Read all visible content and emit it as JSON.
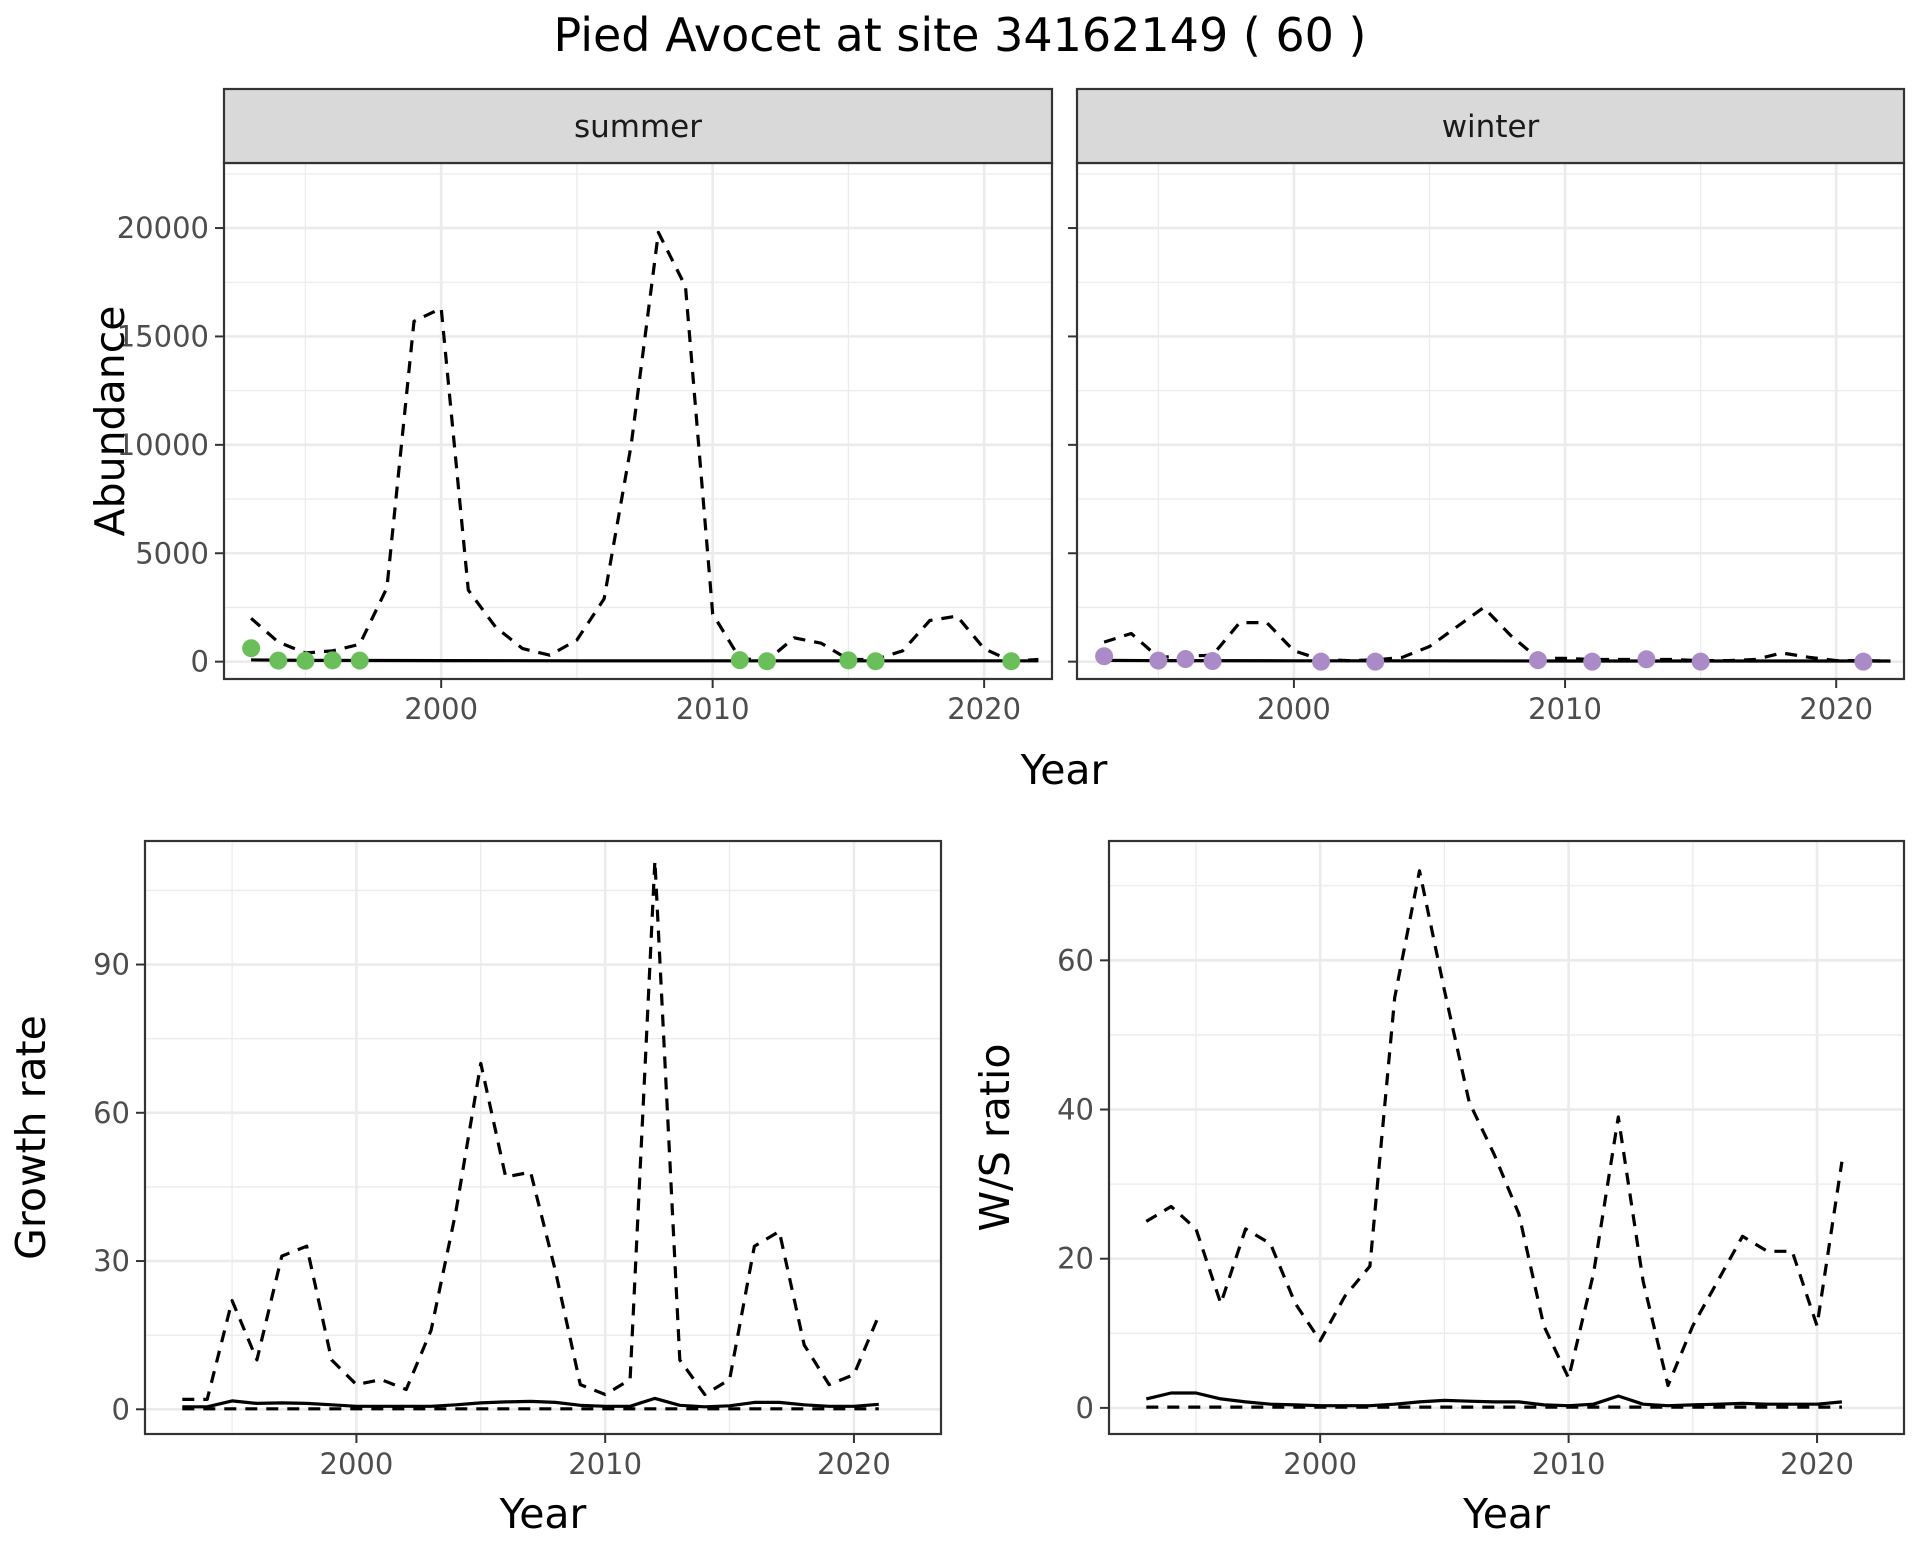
{
  "title": "Pied Avocet at site 34162149 ( 60 )",
  "chart_data": [
    {
      "type": "line",
      "facet": "summer",
      "xlabel": "Year",
      "ylabel": "Abundance",
      "xlim": [
        1992,
        2022.5
      ],
      "ylim": [
        -800,
        23000
      ],
      "xticks": [
        2000,
        2010,
        2020
      ],
      "yticks": [
        0,
        5000,
        10000,
        15000,
        20000
      ],
      "color": "#6abf5a",
      "series": [
        {
          "style": "dashed",
          "x": [
            1993,
            1994,
            1995,
            1996,
            1997,
            1998,
            1999,
            2000,
            2001,
            2002,
            2003,
            2004,
            2005,
            2006,
            2007,
            2008,
            2009,
            2010,
            2011,
            2012,
            2013,
            2014,
            2015,
            2016,
            2017,
            2018,
            2019,
            2020,
            2021,
            2022
          ],
          "values": [
            2000,
            900,
            400,
            500,
            800,
            3400,
            15700,
            16300,
            3300,
            1600,
            600,
            300,
            1000,
            2900,
            10000,
            19800,
            17300,
            2200,
            150,
            50,
            1100,
            850,
            100,
            100,
            500,
            1900,
            2100,
            600,
            20,
            100
          ]
        },
        {
          "style": "solid",
          "x": [
            1993,
            1995,
            2000,
            2005,
            2010,
            2015,
            2020,
            2022
          ],
          "values": [
            80,
            60,
            50,
            40,
            40,
            40,
            40,
            40
          ]
        }
      ],
      "points": {
        "x": [
          1993,
          1994,
          1995,
          1996,
          1997,
          2011,
          2012,
          2015,
          2016,
          2021
        ],
        "values": [
          620,
          50,
          40,
          60,
          50,
          70,
          20,
          60,
          20,
          20
        ]
      }
    },
    {
      "type": "line",
      "facet": "winter",
      "xlabel": "Year",
      "ylabel": "Abundance",
      "xlim": [
        1992,
        2022.5
      ],
      "ylim": [
        -800,
        23000
      ],
      "xticks": [
        2000,
        2010,
        2020
      ],
      "yticks": [
        0,
        5000,
        10000,
        15000,
        20000
      ],
      "color": "#ab8bc7",
      "series": [
        {
          "style": "dashed",
          "x": [
            1993,
            1994,
            1995,
            1996,
            1997,
            1998,
            1999,
            2000,
            2001,
            2002,
            2003,
            2004,
            2005,
            2006,
            2007,
            2008,
            2009,
            2010,
            2011,
            2012,
            2013,
            2014,
            2015,
            2016,
            2017,
            2018,
            2019,
            2020,
            2021,
            2022
          ],
          "values": [
            900,
            1300,
            200,
            250,
            300,
            1800,
            1800,
            500,
            100,
            50,
            80,
            200,
            700,
            1600,
            2500,
            1200,
            150,
            150,
            100,
            100,
            100,
            100,
            50,
            50,
            100,
            400,
            200,
            50,
            50,
            20
          ]
        },
        {
          "style": "solid",
          "x": [
            1993,
            1995,
            2000,
            2005,
            2010,
            2015,
            2020,
            2022
          ],
          "values": [
            60,
            50,
            40,
            40,
            30,
            30,
            30,
            30
          ]
        }
      ],
      "points": {
        "x": [
          1993,
          1995,
          1996,
          1997,
          2001,
          2003,
          2009,
          2011,
          2013,
          2015,
          2021
        ],
        "values": [
          250,
          50,
          120,
          30,
          0,
          0,
          70,
          0,
          110,
          0,
          0
        ]
      }
    },
    {
      "type": "line",
      "xlabel": "Year",
      "ylabel": "Growth rate",
      "xlim": [
        1991.5,
        2023.5
      ],
      "ylim": [
        -5,
        115
      ],
      "xticks": [
        2000,
        2010,
        2020
      ],
      "yticks": [
        0,
        30,
        60,
        90
      ],
      "series": [
        {
          "style": "dashed",
          "x": [
            1993,
            1994,
            1995,
            1996,
            1997,
            1998,
            1999,
            2000,
            2001,
            2002,
            2003,
            2004,
            2005,
            2006,
            2007,
            2008,
            2009,
            2010,
            2011,
            2012,
            2013,
            2014,
            2015,
            2016,
            2017,
            2018,
            2019,
            2020,
            2021
          ],
          "values": [
            2,
            2,
            22,
            10,
            31,
            33,
            10,
            5,
            6,
            4,
            16,
            40,
            70,
            47,
            48,
            28,
            5,
            3,
            6,
            111,
            10,
            3,
            6,
            33,
            36,
            13,
            5,
            7,
            19
          ]
        },
        {
          "style": "solid",
          "x": [
            1993,
            1994,
            1995,
            1996,
            1997,
            1998,
            1999,
            2000,
            2001,
            2002,
            2003,
            2004,
            2005,
            2006,
            2007,
            2008,
            2009,
            2010,
            2011,
            2012,
            2013,
            2014,
            2015,
            2016,
            2017,
            2018,
            2019,
            2020,
            2021
          ],
          "values": [
            0.5,
            0.5,
            1.7,
            1.2,
            1.3,
            1.2,
            0.9,
            0.6,
            0.6,
            0.6,
            0.6,
            0.9,
            1.3,
            1.5,
            1.6,
            1.4,
            0.8,
            0.6,
            0.6,
            2.2,
            0.8,
            0.5,
            0.7,
            1.4,
            1.4,
            0.9,
            0.6,
            0.6,
            1.0
          ]
        },
        {
          "style": "dashed",
          "x": [
            1993,
            2021
          ],
          "values": [
            0.1,
            0.1
          ]
        }
      ]
    },
    {
      "type": "line",
      "xlabel": "Year",
      "ylabel": "W/S ratio",
      "xlim": [
        1991.5,
        2023.5
      ],
      "ylim": [
        -3.5,
        76
      ],
      "xticks": [
        2000,
        2010,
        2020
      ],
      "yticks": [
        0,
        20,
        40,
        60
      ],
      "series": [
        {
          "style": "dashed",
          "x": [
            1993,
            1994,
            1995,
            1996,
            1997,
            1998,
            1999,
            2000,
            2001,
            2002,
            2003,
            2004,
            2005,
            2006,
            2007,
            2008,
            2009,
            2010,
            2011,
            2012,
            2013,
            2014,
            2015,
            2016,
            2017,
            2018,
            2019,
            2020,
            2021
          ],
          "values": [
            25,
            27,
            24,
            14,
            24,
            22,
            14,
            9,
            15,
            19,
            55,
            72,
            56,
            41,
            34,
            26,
            11,
            4,
            18,
            39,
            17,
            3,
            11,
            17,
            23,
            21,
            21,
            11,
            33
          ]
        },
        {
          "style": "solid",
          "x": [
            1993,
            1994,
            1995,
            1996,
            1997,
            1998,
            1999,
            2000,
            2001,
            2002,
            2003,
            2004,
            2005,
            2006,
            2007,
            2008,
            2009,
            2010,
            2011,
            2012,
            2013,
            2014,
            2015,
            2016,
            2017,
            2018,
            2019,
            2020,
            2021
          ],
          "values": [
            1.2,
            2,
            2,
            1.2,
            0.8,
            0.5,
            0.4,
            0.3,
            0.3,
            0.3,
            0.5,
            0.8,
            1,
            0.9,
            0.8,
            0.8,
            0.4,
            0.3,
            0.5,
            1.6,
            0.5,
            0.3,
            0.4,
            0.5,
            0.6,
            0.5,
            0.5,
            0.5,
            0.8
          ]
        },
        {
          "style": "dashed",
          "x": [
            1993,
            2021
          ],
          "values": [
            0.1,
            0.1
          ]
        }
      ]
    }
  ],
  "strip_labels": [
    "summer",
    "winter"
  ],
  "shared_xlabel": "Year"
}
